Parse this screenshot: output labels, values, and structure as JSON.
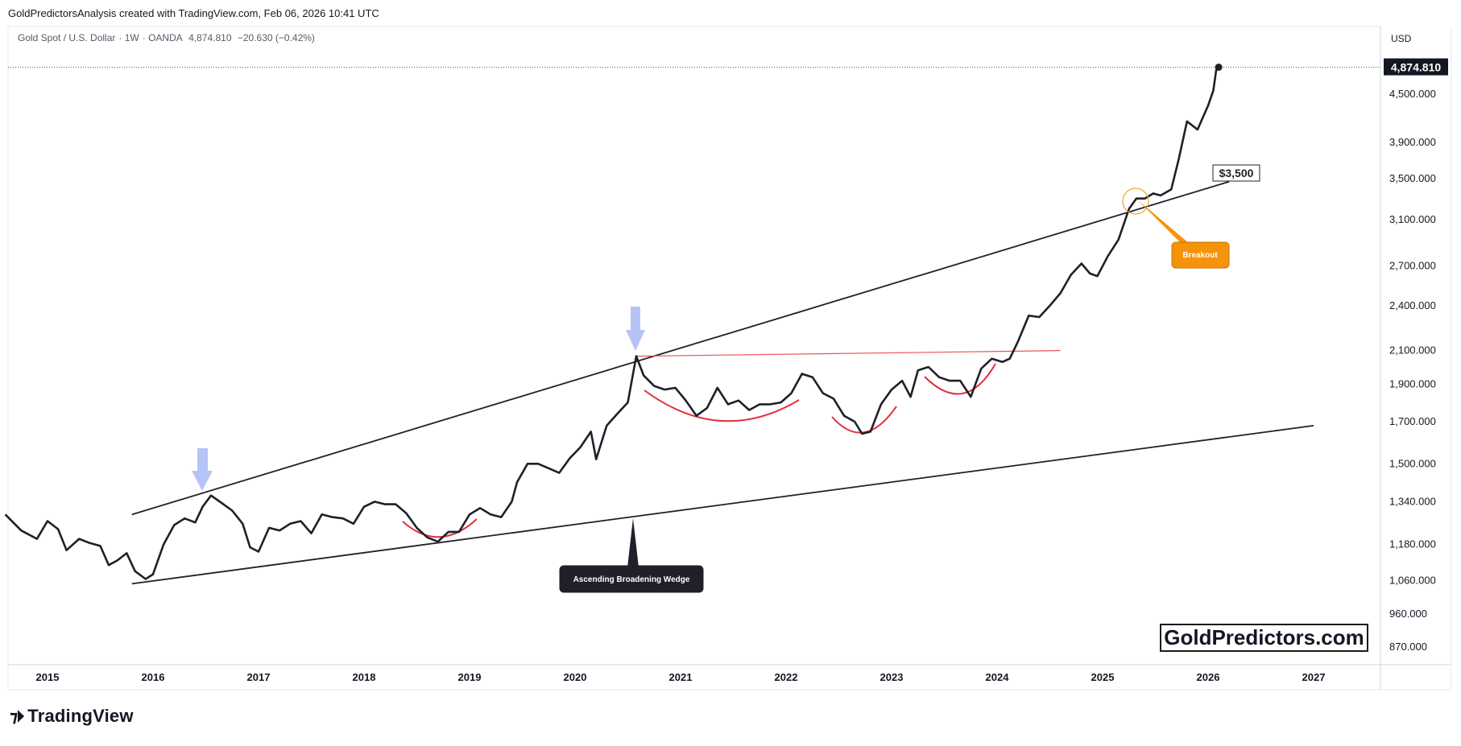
{
  "header": {
    "credit": "GoldPredictorsAnalysis created with TradingView.com, Feb 06, 2026 10:41 UTC"
  },
  "symbol": {
    "name": "Gold Spot / U.S. Dollar",
    "interval": "1W",
    "broker": "OANDA",
    "price": "4,874.810",
    "change": "−20.630 (−0.42%)"
  },
  "price_axis": {
    "currency": "USD",
    "last_price_label": "4,874.810"
  },
  "annotations": {
    "breakout": "Breakout",
    "wedge": "Ascending Broadening Wedge",
    "target": "$3,500"
  },
  "watermark": "GoldPredictors.com",
  "footer_logo": "TradingView",
  "colors": {
    "price_line": "#1f2029",
    "trendline": "#1f2029",
    "resistance": "#f05252",
    "arc": "#e0303b",
    "arrow": "#a9b9f5",
    "breakout_box": "#f5930b",
    "wedge_box": "#1f2029"
  },
  "chart_data": {
    "type": "line",
    "title": "",
    "xlabel": "",
    "ylabel": "USD",
    "scale": "log",
    "ylim": [
      820,
      5000
    ],
    "x_ticks": [
      "2015",
      "2016",
      "2017",
      "2018",
      "2019",
      "2020",
      "2021",
      "2022",
      "2023",
      "2024",
      "2025",
      "2026",
      "2027"
    ],
    "y_ticks": [
      "4,500.000",
      "3,900.000",
      "3,500.000",
      "3,100.000",
      "2,700.000",
      "2,400.000",
      "2,100.000",
      "1,900.000",
      "1,700.000",
      "1,500.000",
      "1,340.000",
      "1,180.000",
      "1,060.000",
      "960.000",
      "870.000"
    ],
    "series": [
      {
        "values": [
          [
            2014.6,
            1290
          ],
          [
            2014.75,
            1230
          ],
          [
            2014.9,
            1200
          ],
          [
            2015.0,
            1265
          ],
          [
            2015.1,
            1235
          ],
          [
            2015.18,
            1160
          ],
          [
            2015.3,
            1200
          ],
          [
            2015.4,
            1185
          ],
          [
            2015.5,
            1175
          ],
          [
            2015.58,
            1110
          ],
          [
            2015.66,
            1125
          ],
          [
            2015.75,
            1150
          ],
          [
            2015.83,
            1090
          ],
          [
            2015.93,
            1065
          ],
          [
            2016.0,
            1080
          ],
          [
            2016.1,
            1180
          ],
          [
            2016.2,
            1250
          ],
          [
            2016.3,
            1275
          ],
          [
            2016.4,
            1260
          ],
          [
            2016.47,
            1320
          ],
          [
            2016.55,
            1365
          ],
          [
            2016.65,
            1335
          ],
          [
            2016.75,
            1305
          ],
          [
            2016.85,
            1255
          ],
          [
            2016.92,
            1170
          ],
          [
            2017.0,
            1155
          ],
          [
            2017.1,
            1240
          ],
          [
            2017.2,
            1230
          ],
          [
            2017.3,
            1255
          ],
          [
            2017.4,
            1265
          ],
          [
            2017.5,
            1220
          ],
          [
            2017.6,
            1290
          ],
          [
            2017.7,
            1280
          ],
          [
            2017.8,
            1275
          ],
          [
            2017.9,
            1255
          ],
          [
            2018.0,
            1320
          ],
          [
            2018.1,
            1340
          ],
          [
            2018.2,
            1330
          ],
          [
            2018.3,
            1330
          ],
          [
            2018.4,
            1295
          ],
          [
            2018.5,
            1240
          ],
          [
            2018.6,
            1205
          ],
          [
            2018.7,
            1190
          ],
          [
            2018.8,
            1225
          ],
          [
            2018.9,
            1225
          ],
          [
            2019.0,
            1290
          ],
          [
            2019.1,
            1315
          ],
          [
            2019.2,
            1290
          ],
          [
            2019.3,
            1280
          ],
          [
            2019.4,
            1340
          ],
          [
            2019.45,
            1420
          ],
          [
            2019.55,
            1500
          ],
          [
            2019.65,
            1500
          ],
          [
            2019.75,
            1480
          ],
          [
            2019.85,
            1460
          ],
          [
            2019.95,
            1525
          ],
          [
            2020.05,
            1575
          ],
          [
            2020.15,
            1650
          ],
          [
            2020.2,
            1520
          ],
          [
            2020.3,
            1680
          ],
          [
            2020.4,
            1740
          ],
          [
            2020.5,
            1800
          ],
          [
            2020.58,
            2065
          ],
          [
            2020.65,
            1950
          ],
          [
            2020.75,
            1890
          ],
          [
            2020.85,
            1870
          ],
          [
            2020.95,
            1880
          ],
          [
            2021.05,
            1810
          ],
          [
            2021.15,
            1730
          ],
          [
            2021.25,
            1770
          ],
          [
            2021.35,
            1880
          ],
          [
            2021.45,
            1790
          ],
          [
            2021.55,
            1810
          ],
          [
            2021.65,
            1760
          ],
          [
            2021.75,
            1790
          ],
          [
            2021.85,
            1790
          ],
          [
            2021.95,
            1800
          ],
          [
            2022.05,
            1850
          ],
          [
            2022.15,
            1960
          ],
          [
            2022.25,
            1940
          ],
          [
            2022.35,
            1850
          ],
          [
            2022.45,
            1820
          ],
          [
            2022.55,
            1730
          ],
          [
            2022.65,
            1700
          ],
          [
            2022.72,
            1640
          ],
          [
            2022.8,
            1650
          ],
          [
            2022.9,
            1790
          ],
          [
            2023.0,
            1870
          ],
          [
            2023.1,
            1920
          ],
          [
            2023.18,
            1830
          ],
          [
            2023.25,
            1980
          ],
          [
            2023.35,
            2000
          ],
          [
            2023.45,
            1940
          ],
          [
            2023.55,
            1920
          ],
          [
            2023.65,
            1920
          ],
          [
            2023.75,
            1830
          ],
          [
            2023.85,
            1990
          ],
          [
            2023.95,
            2050
          ],
          [
            2024.05,
            2030
          ],
          [
            2024.12,
            2050
          ],
          [
            2024.2,
            2160
          ],
          [
            2024.3,
            2330
          ],
          [
            2024.4,
            2320
          ],
          [
            2024.5,
            2400
          ],
          [
            2024.6,
            2490
          ],
          [
            2024.7,
            2630
          ],
          [
            2024.8,
            2720
          ],
          [
            2024.88,
            2640
          ],
          [
            2024.95,
            2620
          ],
          [
            2025.05,
            2780
          ],
          [
            2025.15,
            2920
          ],
          [
            2025.25,
            3200
          ],
          [
            2025.32,
            3300
          ],
          [
            2025.4,
            3300
          ],
          [
            2025.48,
            3350
          ],
          [
            2025.55,
            3330
          ],
          [
            2025.65,
            3390
          ],
          [
            2025.72,
            3700
          ],
          [
            2025.8,
            4150
          ],
          [
            2025.9,
            4050
          ],
          [
            2026.0,
            4350
          ],
          [
            2026.05,
            4550
          ],
          [
            2026.08,
            4870
          ],
          [
            2026.1,
            4874.81
          ]
        ]
      }
    ],
    "trendlines": [
      {
        "from": [
          2015.8,
          1290
        ],
        "to": [
          2026.2,
          3470
        ]
      },
      {
        "from": [
          2015.8,
          1050
        ],
        "to": [
          2027.0,
          1680
        ]
      }
    ],
    "resistance": {
      "from": [
        2020.58,
        2065
      ],
      "to": [
        2024.6,
        2100
      ]
    },
    "target_price": 3500,
    "last_price": 4874.81
  }
}
